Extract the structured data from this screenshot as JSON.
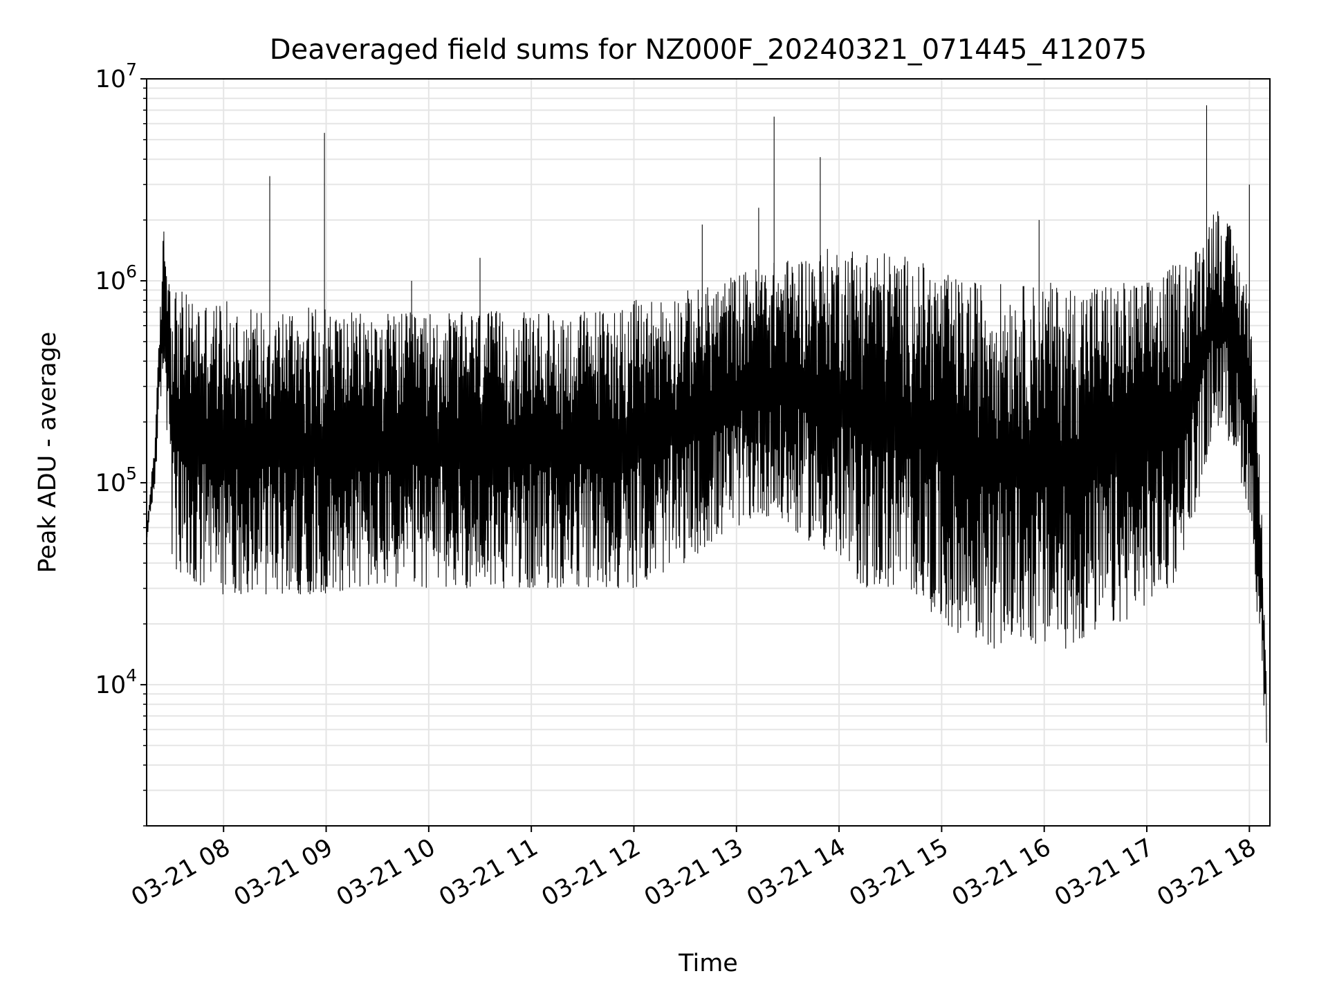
{
  "chart_data": {
    "type": "line",
    "title": "Deaveraged field sums for NZ000F_20240321_071445_412075",
    "xlabel": "Time",
    "ylabel": "Peak ADU - average",
    "yscale": "log",
    "ylim": [
      2000,
      10000000
    ],
    "xlim": [
      "03-21 07:15",
      "03-21 18:12"
    ],
    "grid": true,
    "legend": "none",
    "line_color": "#000000",
    "grid_color": "#e5e5e5",
    "x_ticks": [
      "03-21 08",
      "03-21 09",
      "03-21 10",
      "03-21 11",
      "03-21 12",
      "03-21 13",
      "03-21 14",
      "03-21 15",
      "03-21 16",
      "03-21 17",
      "03-21 18"
    ],
    "y_ticks": [
      {
        "value": 10000,
        "base": "10",
        "exp": "4"
      },
      {
        "value": 100000,
        "base": "10",
        "exp": "5"
      },
      {
        "value": 1000000,
        "base": "10",
        "exp": "6"
      },
      {
        "value": 10000000,
        "base": "10",
        "exp": "7"
      }
    ],
    "series": [
      {
        "x": [
          "03-21 07:15",
          "03-21 07:20",
          "03-21 07:25",
          "03-21 07:30",
          "03-21 07:35",
          "03-21 07:40",
          "03-21 07:45",
          "03-21 07:50",
          "03-21 08:00",
          "03-21 08:15",
          "03-21 08:30",
          "03-21 08:45",
          "03-21 09:00",
          "03-21 09:15",
          "03-21 09:30",
          "03-21 09:45",
          "03-21 10:00",
          "03-21 10:15",
          "03-21 10:30",
          "03-21 10:45",
          "03-21 11:00",
          "03-21 11:15",
          "03-21 11:30",
          "03-21 11:45",
          "03-21 12:00",
          "03-21 12:15",
          "03-21 12:30",
          "03-21 12:45",
          "03-21 13:00",
          "03-21 13:15",
          "03-21 13:30",
          "03-21 13:45",
          "03-21 14:00",
          "03-21 14:15",
          "03-21 14:30",
          "03-21 14:45",
          "03-21 15:00",
          "03-21 15:15",
          "03-21 15:30",
          "03-21 15:45",
          "03-21 16:00",
          "03-21 16:15",
          "03-21 16:30",
          "03-21 16:45",
          "03-21 17:00",
          "03-21 17:15",
          "03-21 17:30",
          "03-21 17:40",
          "03-21 17:50",
          "03-21 18:00",
          "03-21 18:05",
          "03-21 18:10"
        ],
        "high": [
          60000,
          180000,
          2000000,
          1000000,
          900000,
          850000,
          850000,
          800000,
          800000,
          750000,
          750000,
          750000,
          750000,
          700000,
          700000,
          700000,
          700000,
          700000,
          720000,
          700000,
          700000,
          700000,
          720000,
          750000,
          800000,
          850000,
          900000,
          950000,
          1100000,
          1200000,
          1300000,
          1400000,
          1500000,
          1500000,
          1400000,
          1300000,
          1100000,
          1000000,
          1000000,
          950000,
          1000000,
          950000,
          1000000,
          1000000,
          1000000,
          1200000,
          1500000,
          2500000,
          1800000,
          900000,
          250000,
          15000
        ],
        "low": [
          50000,
          100000,
          400000,
          40000,
          30000,
          28000,
          28000,
          28000,
          28000,
          28000,
          28000,
          28000,
          28000,
          30000,
          30000,
          30000,
          30000,
          30000,
          30000,
          30000,
          30000,
          30000,
          30000,
          30000,
          30000,
          35000,
          40000,
          50000,
          60000,
          70000,
          60000,
          50000,
          40000,
          30000,
          30000,
          28000,
          20000,
          17000,
          15000,
          17000,
          15000,
          15000,
          18000,
          20000,
          25000,
          30000,
          80000,
          200000,
          150000,
          70000,
          20000,
          5000
        ]
      }
    ],
    "spikes": [
      {
        "x": "03-21 08:27",
        "y": 3300000
      },
      {
        "x": "03-21 08:59",
        "y": 5400000
      },
      {
        "x": "03-21 09:50",
        "y": 1000000
      },
      {
        "x": "03-21 10:30",
        "y": 1300000
      },
      {
        "x": "03-21 12:40",
        "y": 1900000
      },
      {
        "x": "03-21 13:13",
        "y": 2300000
      },
      {
        "x": "03-21 13:22",
        "y": 6500000
      },
      {
        "x": "03-21 13:49",
        "y": 4100000
      },
      {
        "x": "03-21 15:57",
        "y": 2000000
      },
      {
        "x": "03-21 17:35",
        "y": 7400000
      },
      {
        "x": "03-21 18:00",
        "y": 3000000
      }
    ]
  }
}
